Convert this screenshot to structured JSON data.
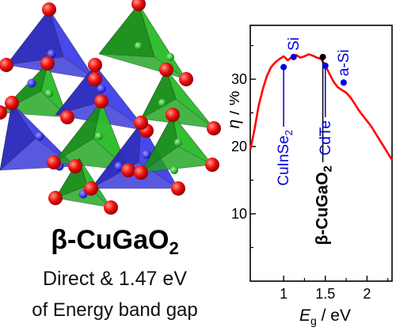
{
  "compound": {
    "main": "β-CuGaO",
    "sub": "2"
  },
  "description": {
    "line1": "Direct & 1.47 eV",
    "line2": "of Energy band gap"
  },
  "chart_data": {
    "type": "line",
    "xlabel": {
      "main": "E",
      "sub": "g",
      "slash": "/",
      "unit": "eV"
    },
    "ylabel": {
      "main": "η",
      "slash": "/",
      "unit": "%"
    },
    "xlim": [
      0.6,
      2.3
    ],
    "ylim": [
      0,
      38
    ],
    "xticks": [
      1,
      1.5,
      2
    ],
    "xtick_labels": [
      "1",
      "1.5",
      "2"
    ],
    "yticks": [
      10,
      20,
      30
    ],
    "ytick_labels": [
      "10",
      "20",
      "30"
    ],
    "line_color": "#ff0000",
    "curve": {
      "x": [
        0.6,
        0.65,
        0.7,
        0.75,
        0.8,
        0.85,
        0.9,
        0.95,
        1.0,
        1.05,
        1.1,
        1.15,
        1.2,
        1.25,
        1.3,
        1.35,
        1.4,
        1.45,
        1.5,
        1.55,
        1.6,
        1.65,
        1.7,
        1.75,
        1.8,
        1.85,
        1.9,
        1.95,
        2.0,
        2.05,
        2.1,
        2.15,
        2.2,
        2.25,
        2.3
      ],
      "y": [
        19.5,
        22.5,
        26.0,
        28.5,
        30.5,
        31.8,
        32.5,
        33.0,
        33.4,
        32.8,
        33.3,
        33.6,
        33.2,
        33.4,
        33.7,
        33.5,
        33.2,
        33.0,
        32.0,
        30.8,
        29.6,
        28.8,
        28.4,
        28.0,
        27.3,
        26.4,
        25.4,
        24.6,
        23.8,
        23.0,
        22.0,
        21.0,
        20.0,
        19.0,
        18.0
      ]
    },
    "annotations": [
      {
        "label": "CuInSe",
        "sub": "2",
        "x": 1.0,
        "y": 31.8,
        "color": "#0000dd",
        "bold": false
      },
      {
        "label": "Si",
        "sub": "",
        "x": 1.12,
        "y": 33.3,
        "color": "#0000dd",
        "bold": false
      },
      {
        "label": "β-CuGaO",
        "sub": "2",
        "x": 1.47,
        "y": 33.3,
        "color": "#000000",
        "bold": true
      },
      {
        "label": "CdTe",
        "sub": "",
        "x": 1.5,
        "y": 32.0,
        "color": "#0000dd",
        "bold": false
      },
      {
        "label": "a-Si",
        "sub": "",
        "x": 1.72,
        "y": 29.5,
        "color": "#0000dd",
        "bold": false
      }
    ]
  }
}
